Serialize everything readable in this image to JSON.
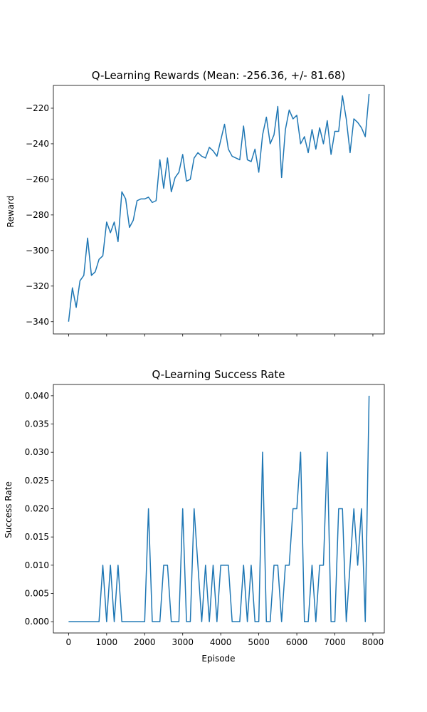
{
  "chart_data": [
    {
      "type": "line",
      "title": "Q-Learning Rewards (Mean: -256.36, +/- 81.68)",
      "xlabel": "",
      "ylabel": "Reward",
      "xlim": [
        -400,
        8300
      ],
      "ylim": [
        -346.9,
        -207.2
      ],
      "xticks": [
        0,
        1000,
        2000,
        3000,
        4000,
        5000,
        6000,
        7000,
        8000
      ],
      "yticks": [
        -340,
        -320,
        -300,
        -280,
        -260,
        -240,
        -220
      ],
      "ytick_labels": [
        "−340",
        "−320",
        "−300",
        "−280",
        "−260",
        "−240",
        "−220"
      ],
      "show_xtick_labels": false,
      "grid": false,
      "color": "#1f77b4",
      "series": [
        {
          "x": [
            0,
            100,
            200,
            300,
            400,
            500,
            600,
            700,
            800,
            900,
            1000,
            1100,
            1200,
            1300,
            1400,
            1500,
            1600,
            1700,
            1800,
            1900,
            2000,
            2100,
            2200,
            2300,
            2400,
            2500,
            2600,
            2700,
            2800,
            2900,
            3000,
            3100,
            3200,
            3300,
            3400,
            3500,
            3600,
            3700,
            3800,
            3900,
            4000,
            4100,
            4200,
            4300,
            4400,
            4500,
            4600,
            4700,
            4800,
            4900,
            5000,
            5100,
            5200,
            5300,
            5400,
            5500,
            5600,
            5700,
            5800,
            5900,
            6000,
            6100,
            6200,
            6300,
            6400,
            6500,
            6600,
            6700,
            6800,
            6900,
            7000,
            7100,
            7200,
            7300,
            7400,
            7500,
            7600,
            7700,
            7800,
            7900
          ],
          "y": [
            -340,
            -321,
            -332,
            -317,
            -314,
            -293,
            -314,
            -312,
            -305,
            -303,
            -284,
            -290,
            -284,
            -295,
            -267,
            -271,
            -287,
            -283,
            -272,
            -271,
            -271,
            -270,
            -273,
            -272,
            -249,
            -265,
            -248,
            -267,
            -259,
            -256,
            -246,
            -261,
            -260,
            -248,
            -245,
            -247,
            -248,
            -242,
            -244,
            -247,
            -238,
            -229,
            -243,
            -247,
            -248,
            -249,
            -230,
            -249,
            -250,
            -243,
            -256,
            -235,
            -225,
            -240,
            -235,
            -219,
            -259,
            -232,
            -221,
            -226,
            -224,
            -240,
            -236,
            -245,
            -232,
            -243,
            -231,
            -240,
            -227,
            -246,
            -233,
            -233,
            -213,
            -226,
            -245,
            -226,
            -228,
            -231,
            -236,
            -212
          ]
        }
      ]
    },
    {
      "type": "line",
      "title": "Q-Learning Success Rate",
      "xlabel": "Episode",
      "ylabel": "Success Rate",
      "xlim": [
        -400,
        8300
      ],
      "ylim": [
        -0.002,
        0.042
      ],
      "xticks": [
        0,
        1000,
        2000,
        3000,
        4000,
        5000,
        6000,
        7000,
        8000
      ],
      "xtick_labels": [
        "0",
        "1000",
        "2000",
        "3000",
        "4000",
        "5000",
        "6000",
        "7000",
        "8000"
      ],
      "yticks": [
        0,
        0.005,
        0.01,
        0.015,
        0.02,
        0.025,
        0.03,
        0.035,
        0.04
      ],
      "ytick_labels": [
        "0.000",
        "0.005",
        "0.010",
        "0.015",
        "0.020",
        "0.025",
        "0.030",
        "0.035",
        "0.040"
      ],
      "show_xtick_labels": true,
      "grid": false,
      "color": "#1f77b4",
      "series": [
        {
          "x": [
            0,
            100,
            200,
            300,
            400,
            500,
            600,
            700,
            800,
            900,
            1000,
            1100,
            1200,
            1300,
            1400,
            1500,
            1600,
            1700,
            1800,
            1900,
            2000,
            2100,
            2200,
            2300,
            2400,
            2500,
            2600,
            2700,
            2800,
            2900,
            3000,
            3100,
            3200,
            3300,
            3400,
            3500,
            3600,
            3700,
            3800,
            3900,
            4000,
            4100,
            4200,
            4300,
            4400,
            4500,
            4600,
            4700,
            4800,
            4900,
            5000,
            5100,
            5200,
            5300,
            5400,
            5500,
            5600,
            5700,
            5800,
            5900,
            6000,
            6100,
            6200,
            6300,
            6400,
            6500,
            6600,
            6700,
            6800,
            6900,
            7000,
            7100,
            7200,
            7300,
            7400,
            7500,
            7600,
            7700,
            7800,
            7900
          ],
          "y": [
            0,
            0,
            0,
            0,
            0,
            0,
            0,
            0,
            0,
            0.01,
            0,
            0.01,
            0,
            0.01,
            0,
            0,
            0,
            0,
            0,
            0,
            0,
            0.02,
            0,
            0,
            0,
            0.01,
            0.01,
            0,
            0,
            0,
            0.02,
            0,
            0,
            0.02,
            0.01,
            0,
            0.01,
            0,
            0.01,
            0,
            0.01,
            0.01,
            0.01,
            0,
            0,
            0,
            0.01,
            0,
            0.01,
            0,
            0,
            0.03,
            0,
            0,
            0.01,
            0.01,
            0,
            0.01,
            0.01,
            0.02,
            0.02,
            0.03,
            0,
            0,
            0.01,
            0,
            0.01,
            0.01,
            0.03,
            0,
            0,
            0.02,
            0.02,
            0,
            0.01,
            0.02,
            0.01,
            0.02,
            0,
            0.04
          ]
        }
      ]
    }
  ]
}
